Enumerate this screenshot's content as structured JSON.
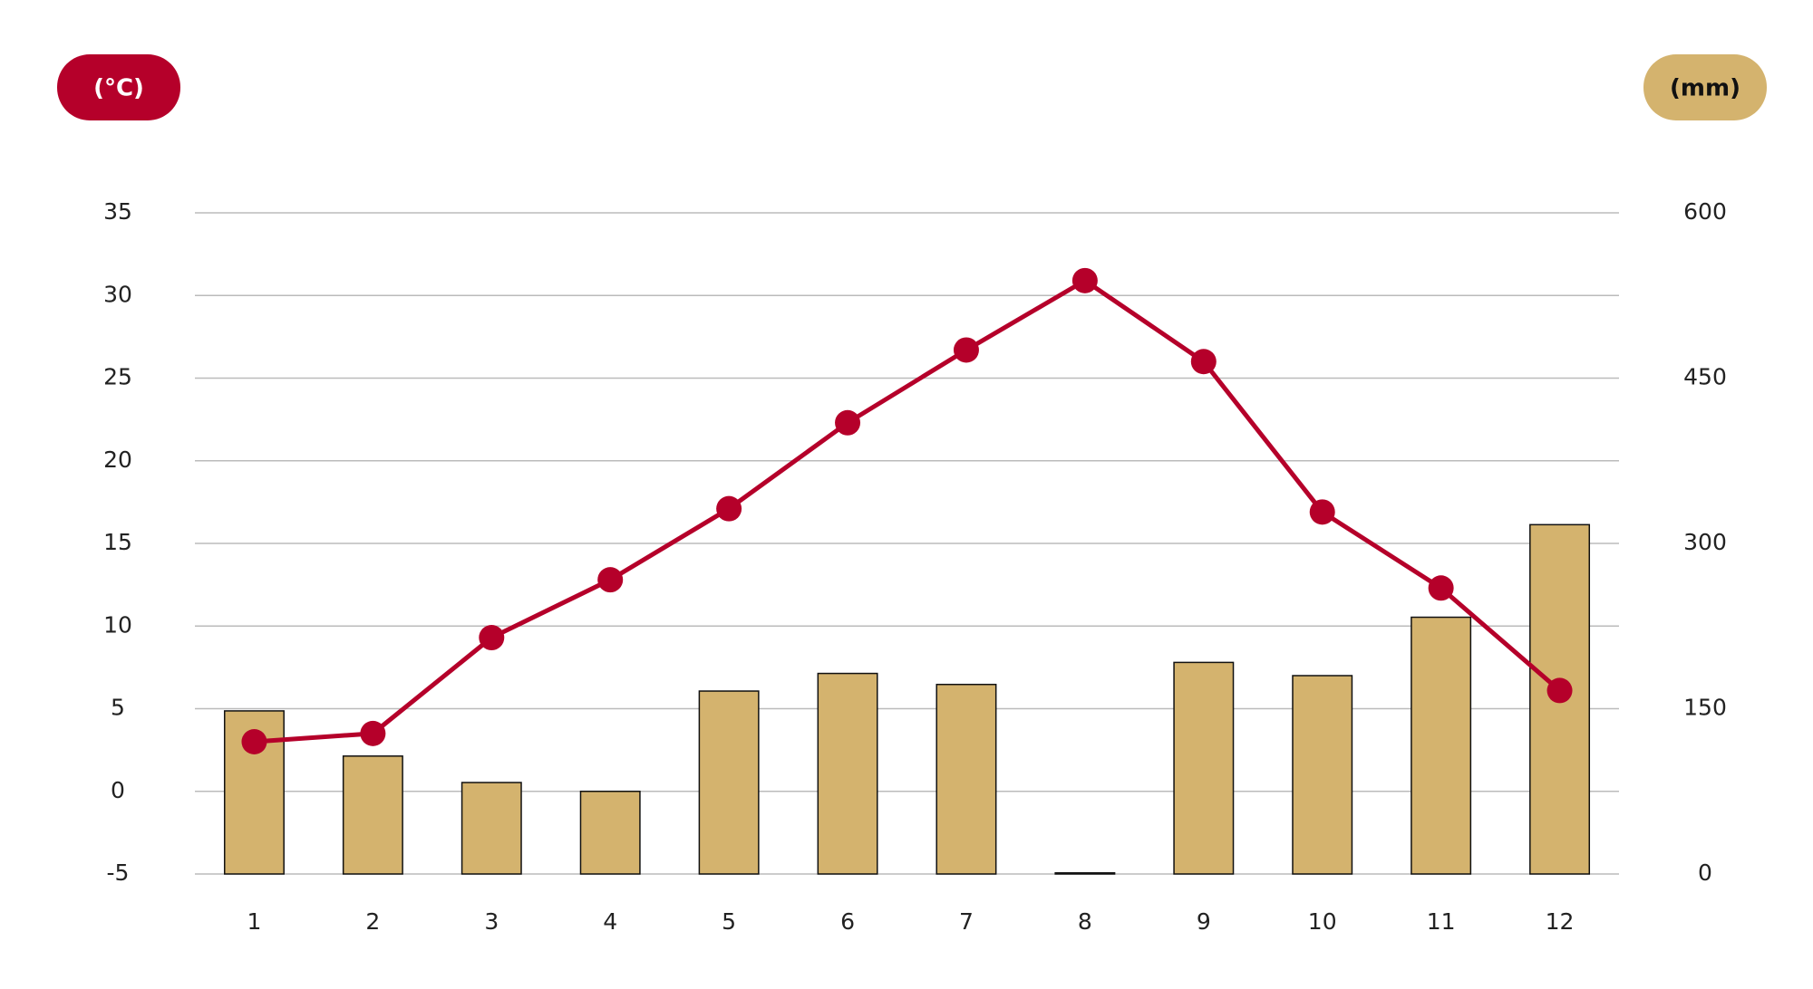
{
  "chart_data": {
    "type": "combo",
    "ylabel": "(°C)",
    "y2label": "(mm)",
    "categories": [
      "1",
      "2",
      "3",
      "4",
      "5",
      "6",
      "7",
      "8",
      "9",
      "10",
      "11",
      "12"
    ],
    "series": [
      {
        "type": "bar",
        "axis": "y2",
        "color": "#d4b36e",
        "values": [
          148,
          107,
          83,
          75,
          166,
          182,
          172,
          1,
          192,
          180,
          233,
          317
        ]
      },
      {
        "type": "line",
        "axis": "y",
        "color": "#b5002a",
        "values": [
          3.0,
          3.5,
          9.3,
          12.8,
          17.1,
          22.3,
          26.7,
          30.9,
          26.0,
          16.9,
          12.3,
          6.1
        ]
      }
    ],
    "ylim": [
      -5,
      35
    ],
    "yticks": [
      -5,
      0,
      5,
      10,
      15,
      20,
      25,
      30,
      35
    ],
    "y2lim": [
      0,
      600
    ],
    "y2ticks": [
      0,
      150,
      300,
      450,
      600
    ],
    "grid": true
  }
}
